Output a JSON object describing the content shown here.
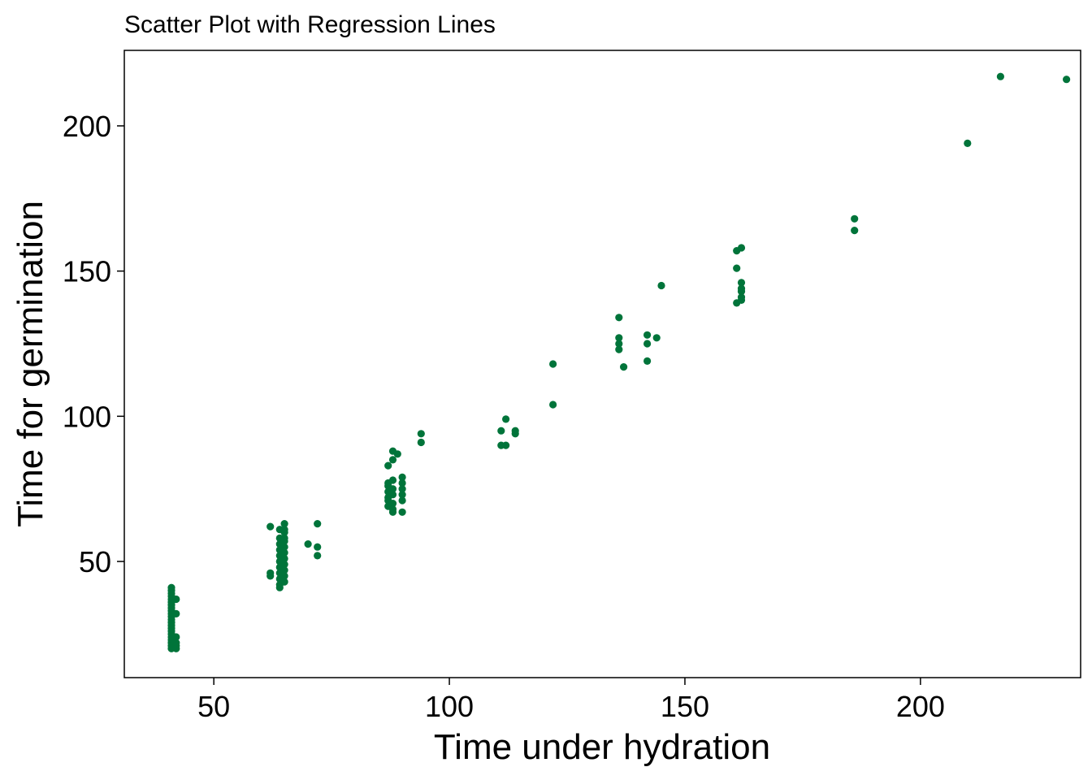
{
  "chart_data": {
    "type": "scatter",
    "title": "Scatter Plot with Regression Lines",
    "xlabel": "Time under hydration",
    "ylabel": "Time for germination",
    "xlim": [
      31,
      234
    ],
    "ylim": [
      10,
      226
    ],
    "xticks": [
      50,
      100,
      150,
      200
    ],
    "yticks": [
      50,
      100,
      150,
      200
    ],
    "xtick_labels": [
      "50",
      "100",
      "150",
      "200"
    ],
    "ytick_labels": [
      "50",
      "100",
      "150",
      "200"
    ],
    "grid": false,
    "legend": "none",
    "point_color": "#00743a",
    "series": [
      {
        "name": "observations",
        "points": [
          [
            41,
            41
          ],
          [
            41,
            40
          ],
          [
            41,
            39
          ],
          [
            41,
            38
          ],
          [
            41,
            37
          ],
          [
            41,
            36
          ],
          [
            41,
            35
          ],
          [
            41,
            34
          ],
          [
            41,
            33
          ],
          [
            41,
            32
          ],
          [
            41,
            31
          ],
          [
            41,
            30
          ],
          [
            41,
            29
          ],
          [
            41,
            28
          ],
          [
            41,
            27
          ],
          [
            41,
            26
          ],
          [
            41,
            25
          ],
          [
            41,
            24
          ],
          [
            41,
            23
          ],
          [
            41,
            22
          ],
          [
            41,
            21
          ],
          [
            41,
            20
          ],
          [
            42,
            37
          ],
          [
            42,
            32
          ],
          [
            42,
            24
          ],
          [
            42,
            22
          ],
          [
            42,
            21
          ],
          [
            42,
            20
          ],
          [
            62,
            62
          ],
          [
            62,
            46
          ],
          [
            62,
            45
          ],
          [
            64,
            61
          ],
          [
            64,
            58
          ],
          [
            64,
            56
          ],
          [
            64,
            54
          ],
          [
            64,
            52
          ],
          [
            64,
            50
          ],
          [
            64,
            48
          ],
          [
            64,
            46
          ],
          [
            64,
            44
          ],
          [
            64,
            42
          ],
          [
            64,
            41
          ],
          [
            65,
            63
          ],
          [
            65,
            61
          ],
          [
            65,
            60
          ],
          [
            65,
            58
          ],
          [
            65,
            57
          ],
          [
            65,
            55
          ],
          [
            65,
            53
          ],
          [
            65,
            51
          ],
          [
            65,
            49
          ],
          [
            65,
            47
          ],
          [
            65,
            45
          ],
          [
            65,
            43
          ],
          [
            70,
            56
          ],
          [
            72,
            63
          ],
          [
            72,
            55
          ],
          [
            72,
            52
          ],
          [
            87,
            83
          ],
          [
            87,
            77
          ],
          [
            87,
            76
          ],
          [
            87,
            74
          ],
          [
            87,
            72
          ],
          [
            87,
            71
          ],
          [
            87,
            69
          ],
          [
            88,
            88
          ],
          [
            88,
            85
          ],
          [
            88,
            78
          ],
          [
            88,
            75
          ],
          [
            88,
            73
          ],
          [
            88,
            70
          ],
          [
            88,
            68
          ],
          [
            88,
            67
          ],
          [
            89,
            87
          ],
          [
            90,
            79
          ],
          [
            90,
            77
          ],
          [
            90,
            75
          ],
          [
            90,
            73
          ],
          [
            90,
            71
          ],
          [
            90,
            67
          ],
          [
            94,
            94
          ],
          [
            94,
            91
          ],
          [
            111,
            95
          ],
          [
            111,
            90
          ],
          [
            112,
            99
          ],
          [
            112,
            90
          ],
          [
            114,
            95
          ],
          [
            114,
            94
          ],
          [
            122,
            118
          ],
          [
            122,
            104
          ],
          [
            136,
            134
          ],
          [
            136,
            127
          ],
          [
            136,
            125
          ],
          [
            136,
            123
          ],
          [
            137,
            117
          ],
          [
            142,
            128
          ],
          [
            142,
            125
          ],
          [
            142,
            119
          ],
          [
            144,
            127
          ],
          [
            145,
            145
          ],
          [
            161,
            157
          ],
          [
            161,
            151
          ],
          [
            161,
            139
          ],
          [
            162,
            158
          ],
          [
            162,
            146
          ],
          [
            162,
            144
          ],
          [
            162,
            143
          ],
          [
            162,
            141
          ],
          [
            162,
            140
          ],
          [
            186,
            168
          ],
          [
            186,
            164
          ],
          [
            210,
            194
          ],
          [
            217,
            217
          ],
          [
            231,
            216
          ]
        ]
      }
    ]
  }
}
